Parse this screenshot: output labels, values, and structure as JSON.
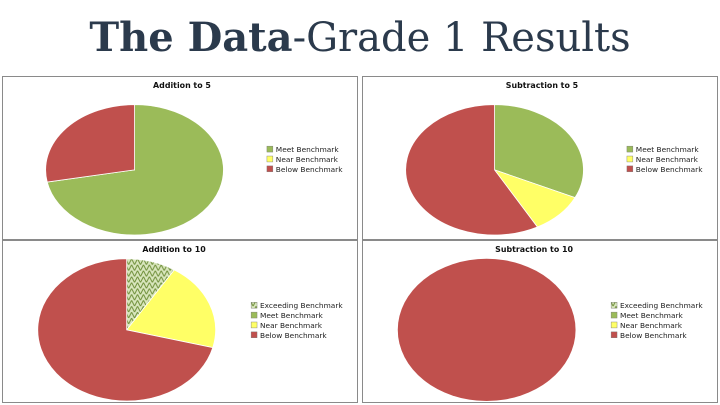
{
  "slide": {
    "title_bold": "The Data",
    "title_rest": "-Grade 1 Results"
  },
  "colors": {
    "exceeding": "#7a9a47",
    "meet": "#9bbb59",
    "near": "#ffff66",
    "below": "#c0504d"
  },
  "chart_data": [
    {
      "type": "pie",
      "title": "Addition to 5",
      "legend_position": "right",
      "categories": [
        "Meet Benchmark",
        "Near Benchmark",
        "Below Benchmark"
      ],
      "values": [
        72,
        0,
        28
      ],
      "colors": [
        "#9bbb59",
        "#ffff66",
        "#c0504d"
      ],
      "patterns": [
        false,
        false,
        false
      ]
    },
    {
      "type": "pie",
      "title": "Subtraction to 5",
      "legend_position": "right",
      "categories": [
        "Meet Benchmark",
        "Near Benchmark",
        "Below Benchmark"
      ],
      "values": [
        32,
        10,
        58
      ],
      "colors": [
        "#9bbb59",
        "#ffff66",
        "#c0504d"
      ],
      "patterns": [
        false,
        false,
        false
      ]
    },
    {
      "type": "pie",
      "title": "Addition to 10",
      "legend_position": "right",
      "categories": [
        "Exceeding Benchmark",
        "Meet Benchmark",
        "Near Benchmark",
        "Below Benchmark"
      ],
      "values": [
        9,
        0,
        20,
        71
      ],
      "colors": [
        "#7a9a47",
        "#9bbb59",
        "#ffff66",
        "#c0504d"
      ],
      "patterns": [
        true,
        false,
        false,
        false
      ]
    },
    {
      "type": "pie",
      "title": "Subtraction to 10",
      "legend_position": "right",
      "categories": [
        "Exceeding Benchmark",
        "Meet Benchmark",
        "Near Benchmark",
        "Below Benchmark"
      ],
      "values": [
        0,
        0,
        0,
        100
      ],
      "colors": [
        "#7a9a47",
        "#9bbb59",
        "#ffff66",
        "#c0504d"
      ],
      "patterns": [
        true,
        false,
        false,
        false
      ]
    }
  ]
}
